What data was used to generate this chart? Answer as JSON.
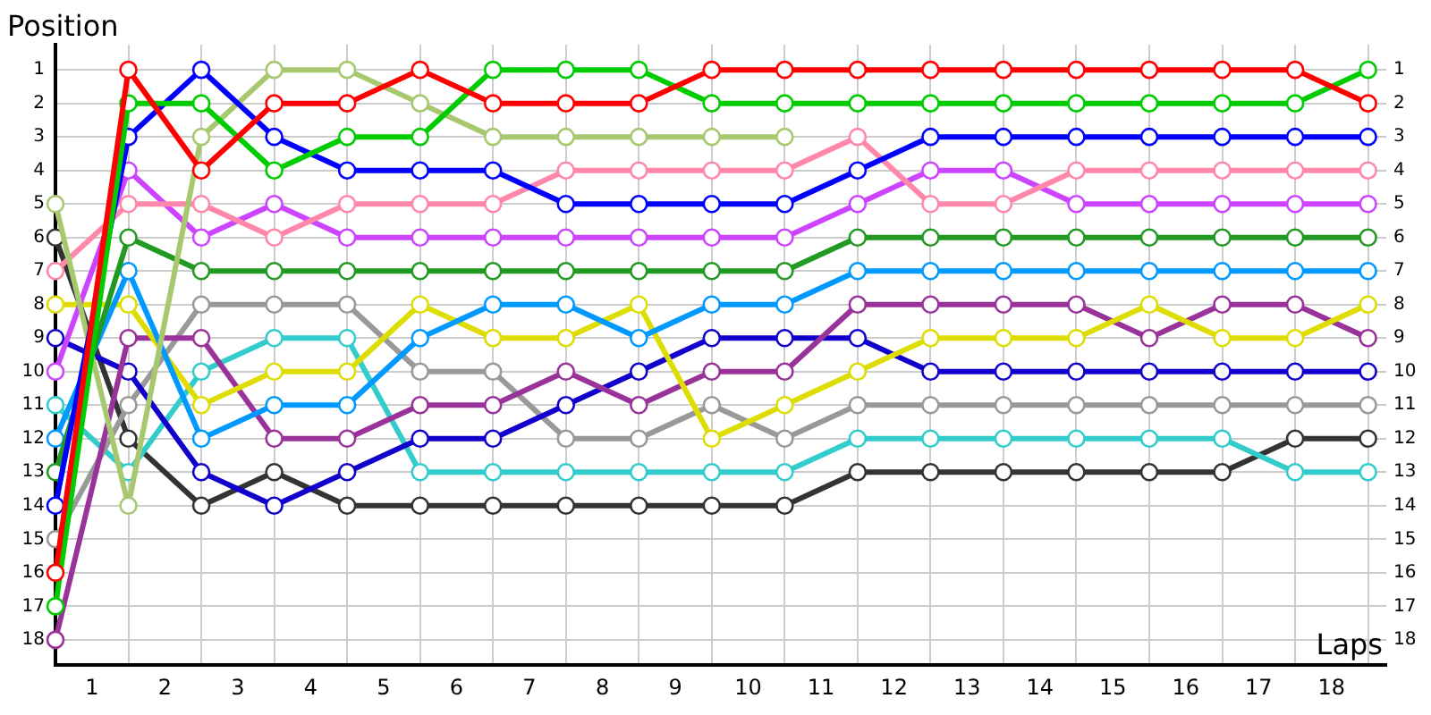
{
  "chart_data": {
    "type": "line",
    "xlabel": "Laps",
    "ylabel": "Position",
    "x": [
      0,
      1,
      2,
      3,
      4,
      5,
      6,
      7,
      8,
      9,
      10,
      11,
      12,
      13,
      14,
      15,
      16,
      17,
      18
    ],
    "xlim": [
      0,
      18.25
    ],
    "xticks": [
      {
        "value": 0,
        "label": null
      },
      {
        "value": 0.5,
        "label": "1"
      },
      {
        "value": 1,
        "label": null
      },
      {
        "value": 1.5,
        "label": "2"
      },
      {
        "value": 2,
        "label": null
      },
      {
        "value": 2.5,
        "label": "3"
      },
      {
        "value": 3,
        "label": null
      },
      {
        "value": 3.5,
        "label": "4"
      },
      {
        "value": 4,
        "label": null
      },
      {
        "value": 4.5,
        "label": "5"
      },
      {
        "value": 5,
        "label": null
      },
      {
        "value": 5.5,
        "label": "6"
      },
      {
        "value": 6,
        "label": null
      },
      {
        "value": 6.5,
        "label": "7"
      },
      {
        "value": 7,
        "label": null
      },
      {
        "value": 7.5,
        "label": "8"
      },
      {
        "value": 8,
        "label": null
      },
      {
        "value": 8.5,
        "label": "9"
      },
      {
        "value": 9,
        "label": null
      },
      {
        "value": 9.5,
        "label": "10"
      },
      {
        "value": 10,
        "label": null
      },
      {
        "value": 10.5,
        "label": "11"
      },
      {
        "value": 11,
        "label": null
      },
      {
        "value": 11.5,
        "label": "12"
      },
      {
        "value": 12,
        "label": null
      },
      {
        "value": 12.5,
        "label": "13"
      },
      {
        "value": 13,
        "label": null
      },
      {
        "value": 13.5,
        "label": "14"
      },
      {
        "value": 14,
        "label": null
      },
      {
        "value": 14.5,
        "label": "15"
      },
      {
        "value": 15,
        "label": null
      },
      {
        "value": 15.5,
        "label": "16"
      },
      {
        "value": 16,
        "label": null
      },
      {
        "value": 16.5,
        "label": "17"
      },
      {
        "value": 17,
        "label": null
      },
      {
        "value": 17.5,
        "label": "18"
      },
      {
        "value": 18,
        "label": null
      }
    ],
    "ylim": [
      18.75,
      0.25
    ],
    "yticks": [
      1,
      2,
      3,
      4,
      5,
      6,
      7,
      8,
      9,
      10,
      11,
      12,
      13,
      14,
      15,
      16,
      17,
      18
    ],
    "y2lim": [
      18.75,
      0.25
    ],
    "y2ticks": [
      1,
      2,
      3,
      4,
      5,
      6,
      7,
      8,
      9,
      10,
      11,
      12,
      13,
      14,
      15,
      16,
      17,
      18
    ],
    "grid": true,
    "marker": "circle",
    "line_style": "solid",
    "series": [
      {
        "color": "#ff0000",
        "values": [
          16,
          1,
          4,
          2,
          2,
          1,
          2,
          2,
          2,
          1,
          1,
          1,
          1,
          1,
          1,
          1,
          1,
          1,
          2
        ]
      },
      {
        "color": "#00cc00",
        "values": [
          17,
          2,
          2,
          4,
          3,
          3,
          1,
          1,
          1,
          2,
          2,
          2,
          2,
          2,
          2,
          2,
          2,
          2,
          1
        ]
      },
      {
        "color": "#0000ff",
        "values": [
          14,
          3,
          1,
          3,
          4,
          4,
          4,
          5,
          5,
          5,
          5,
          4,
          3,
          3,
          3,
          3,
          3,
          3,
          3
        ]
      },
      {
        "color": "#a8c870",
        "values": [
          5,
          14,
          3,
          1,
          1,
          2,
          3,
          3,
          3,
          3,
          3,
          null,
          null,
          null,
          null,
          null,
          null,
          null,
          null
        ]
      },
      {
        "color": "#ff88aa",
        "values": [
          7,
          5,
          5,
          6,
          5,
          5,
          5,
          4,
          4,
          4,
          4,
          3,
          5,
          5,
          4,
          4,
          4,
          4,
          4
        ]
      },
      {
        "color": "#cc44ff",
        "values": [
          10,
          4,
          6,
          5,
          6,
          6,
          6,
          6,
          6,
          6,
          6,
          5,
          4,
          4,
          5,
          5,
          5,
          5,
          5
        ]
      },
      {
        "color": "#229922",
        "values": [
          13,
          6,
          7,
          7,
          7,
          7,
          7,
          7,
          7,
          7,
          7,
          6,
          6,
          6,
          6,
          6,
          6,
          6,
          6
        ]
      },
      {
        "color": "#0099ff",
        "values": [
          12,
          7,
          12,
          11,
          11,
          9,
          8,
          8,
          9,
          8,
          8,
          7,
          7,
          7,
          7,
          7,
          7,
          7,
          7
        ]
      },
      {
        "color": "#dddd00",
        "values": [
          8,
          8,
          11,
          10,
          10,
          8,
          9,
          9,
          8,
          12,
          11,
          10,
          9,
          9,
          9,
          8,
          9,
          9,
          8
        ]
      },
      {
        "color": "#993399",
        "values": [
          18,
          9,
          9,
          12,
          12,
          11,
          11,
          10,
          11,
          10,
          10,
          8,
          8,
          8,
          8,
          9,
          8,
          8,
          9
        ]
      },
      {
        "color": "#1100cc",
        "values": [
          9,
          10,
          13,
          14,
          13,
          12,
          12,
          11,
          10,
          9,
          9,
          9,
          10,
          10,
          10,
          10,
          10,
          10,
          10
        ]
      },
      {
        "color": "#999999",
        "values": [
          15,
          11,
          8,
          8,
          8,
          10,
          10,
          12,
          12,
          11,
          12,
          11,
          11,
          11,
          11,
          11,
          11,
          11,
          11
        ]
      },
      {
        "color": "#33cccc",
        "values": [
          11,
          13,
          10,
          9,
          9,
          13,
          13,
          13,
          13,
          13,
          13,
          12,
          12,
          12,
          12,
          12,
          12,
          13,
          13
        ]
      },
      {
        "color": "#333333",
        "values": [
          6,
          12,
          14,
          13,
          14,
          14,
          14,
          14,
          14,
          14,
          14,
          13,
          13,
          13,
          13,
          13,
          13,
          12,
          12
        ]
      }
    ]
  }
}
